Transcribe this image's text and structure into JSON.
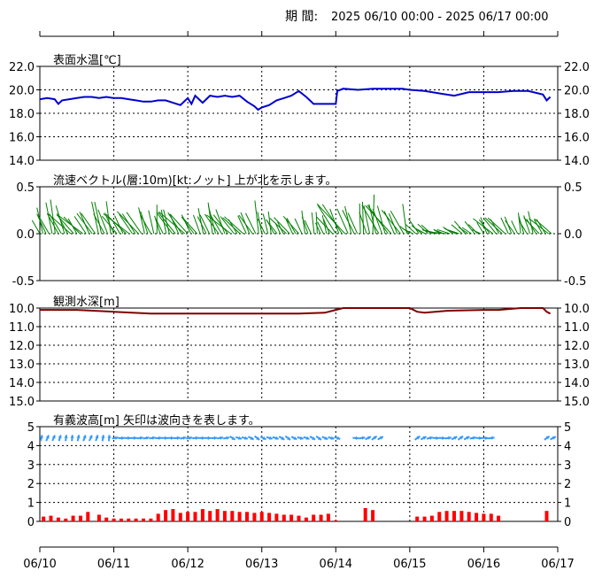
{
  "period": {
    "label": "期 間:",
    "range": "2025 06/10 00:00 - 2025 06/17 00:00"
  },
  "x_axis": {
    "dates": [
      "06/10",
      "06/11",
      "06/12",
      "06/13",
      "06/14",
      "06/15",
      "06/16",
      "06/17"
    ]
  },
  "chart_data": [
    {
      "type": "line",
      "title": "表面水温[℃]",
      "ylim": [
        14.0,
        22.0
      ],
      "yticks": [
        "22.0",
        "20.0",
        "18.0",
        "16.0",
        "14.0"
      ],
      "grid": true,
      "color": "#0000cc",
      "x_days": [
        0,
        0.1,
        0.2,
        0.25,
        0.3,
        0.4,
        0.5,
        0.6,
        0.7,
        0.8,
        0.9,
        1.0,
        1.1,
        1.2,
        1.3,
        1.4,
        1.5,
        1.6,
        1.7,
        1.8,
        1.9,
        2.0,
        2.05,
        2.1,
        2.2,
        2.3,
        2.4,
        2.5,
        2.6,
        2.7,
        2.8,
        2.9,
        2.95,
        3.0,
        3.1,
        3.2,
        3.3,
        3.4,
        3.5,
        3.6,
        3.7,
        3.8,
        3.9,
        4.0,
        4.02,
        4.1,
        4.3,
        4.5,
        4.7,
        4.9,
        5.0,
        5.2,
        5.4,
        5.6,
        5.8,
        6.0,
        6.2,
        6.4,
        6.6,
        6.8,
        6.85,
        6.9
      ],
      "values": [
        19.2,
        19.3,
        19.2,
        18.8,
        19.1,
        19.2,
        19.3,
        19.4,
        19.4,
        19.3,
        19.4,
        19.3,
        19.3,
        19.2,
        19.1,
        19.0,
        19.0,
        19.1,
        19.1,
        18.9,
        18.7,
        19.3,
        18.8,
        19.5,
        18.9,
        19.5,
        19.4,
        19.5,
        19.4,
        19.5,
        19.0,
        18.6,
        18.3,
        18.5,
        18.7,
        19.1,
        19.3,
        19.5,
        19.9,
        19.4,
        18.8,
        18.8,
        18.8,
        18.8,
        19.9,
        20.1,
        20.0,
        20.1,
        20.1,
        20.1,
        20.0,
        19.9,
        19.7,
        19.5,
        19.8,
        19.8,
        19.8,
        19.9,
        19.9,
        19.6,
        19.1,
        19.4
      ]
    },
    {
      "type": "vector",
      "title": "流速ベクトル(層:10m)[kt:ノット] 上が北を示します。",
      "ylim": [
        -0.5,
        0.5
      ],
      "yticks": [
        "0.5",
        "0.0",
        "-0.5"
      ],
      "color": "#008000",
      "segments": [
        {
          "from": 0.0,
          "to": 1.3,
          "speed": 0.3,
          "dir": 330
        },
        {
          "from": 1.3,
          "to": 2.0,
          "speed": 0.28,
          "dir": 335
        },
        {
          "from": 2.0,
          "to": 3.0,
          "speed": 0.28,
          "dir": 330
        },
        {
          "from": 3.0,
          "to": 4.0,
          "speed": 0.22,
          "dir": 335
        },
        {
          "from": 4.0,
          "to": 5.0,
          "speed": 0.35,
          "dir": 340
        },
        {
          "from": 5.0,
          "to": 6.0,
          "speed": 0.15,
          "dir": 300
        },
        {
          "from": 6.0,
          "to": 6.95,
          "speed": 0.22,
          "dir": 330
        }
      ]
    },
    {
      "type": "line",
      "title": "観測水深[m]",
      "ylim": [
        15.0,
        10.0
      ],
      "yticks": [
        "10.0",
        "11.0",
        "12.0",
        "13.0",
        "14.0",
        "15.0"
      ],
      "grid": true,
      "color": "#800000",
      "x_days": [
        0,
        0.5,
        1.0,
        1.5,
        2.0,
        2.5,
        3.0,
        3.5,
        3.85,
        4.0,
        4.1,
        4.5,
        5.0,
        5.1,
        5.2,
        5.5,
        6.0,
        6.2,
        6.5,
        6.8,
        6.85,
        6.9
      ],
      "values": [
        10.1,
        10.1,
        10.2,
        10.3,
        10.3,
        10.3,
        10.3,
        10.3,
        10.25,
        10.1,
        10.0,
        10.0,
        10.0,
        10.2,
        10.25,
        10.15,
        10.1,
        10.1,
        10.0,
        10.0,
        10.2,
        10.3
      ]
    },
    {
      "type": "bar",
      "title": "有義波高[m] 矢印は波向きを表します。",
      "ylim": [
        0,
        5
      ],
      "yticks": [
        "5",
        "4",
        "3",
        "2",
        "1",
        "0"
      ],
      "color": "#ff0000",
      "arrow_color": "#3399ff",
      "arrow_gaps": [
        [
          4.05,
          4.25
        ],
        [
          4.65,
          5.05
        ],
        [
          6.15,
          6.8
        ]
      ],
      "x_days": [
        0.05,
        0.15,
        0.25,
        0.35,
        0.45,
        0.55,
        0.65,
        0.8,
        0.9,
        1.0,
        1.1,
        1.2,
        1.3,
        1.4,
        1.5,
        1.6,
        1.7,
        1.8,
        1.9,
        2.0,
        2.1,
        2.2,
        2.3,
        2.4,
        2.5,
        2.6,
        2.7,
        2.8,
        2.9,
        3.0,
        3.1,
        3.2,
        3.3,
        3.4,
        3.5,
        3.6,
        3.7,
        3.8,
        3.9,
        4.0,
        4.4,
        4.5,
        5.1,
        5.2,
        5.3,
        5.4,
        5.5,
        5.6,
        5.7,
        5.8,
        5.9,
        6.0,
        6.1,
        6.2,
        6.85
      ],
      "values": [
        0.25,
        0.3,
        0.2,
        0.15,
        0.3,
        0.3,
        0.5,
        0.35,
        0.2,
        0.15,
        0.15,
        0.15,
        0.15,
        0.15,
        0.15,
        0.4,
        0.6,
        0.65,
        0.45,
        0.5,
        0.5,
        0.65,
        0.55,
        0.65,
        0.55,
        0.55,
        0.5,
        0.5,
        0.45,
        0.5,
        0.45,
        0.4,
        0.35,
        0.35,
        0.3,
        0.2,
        0.35,
        0.35,
        0.4,
        0.05,
        0.7,
        0.6,
        0.25,
        0.25,
        0.3,
        0.5,
        0.55,
        0.55,
        0.55,
        0.5,
        0.45,
        0.4,
        0.4,
        0.3,
        0.55
      ]
    }
  ]
}
